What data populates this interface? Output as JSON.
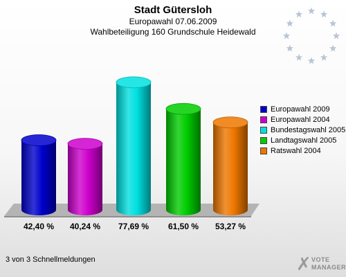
{
  "header": {
    "title": "Stadt Gütersloh",
    "subtitle1": "Europawahl 07.06.2009",
    "subtitle2": "Wahlbeteiligung 160 Grundschule Heidewald"
  },
  "chart_data": {
    "type": "bar",
    "title": "Stadt Gütersloh",
    "subtitle": "Europawahl 07.06.2009 — Wahlbeteiligung 160 Grundschule Heidewald",
    "categories": [
      "Europawahl 2009",
      "Europawahl 2004",
      "Bundestagswahl 2005",
      "Landtagswahl 2005",
      "Ratswahl 2004"
    ],
    "values": [
      42.4,
      40.24,
      77.69,
      61.5,
      53.27
    ],
    "value_labels": [
      "42,40 %",
      "40,24 %",
      "77,69 %",
      "61,50 %",
      "53,27 %"
    ],
    "colors": [
      "#0000cc",
      "#cc00cc",
      "#00e0e0",
      "#00cc00",
      "#ee7700"
    ],
    "ylim": [
      0,
      100
    ],
    "grid": false,
    "legend_position": "right"
  },
  "footer": {
    "text": "3 von 3 Schnellmeldungen"
  },
  "logo": {
    "text_line1": "VOTE",
    "text_line2": "MANAGER"
  }
}
